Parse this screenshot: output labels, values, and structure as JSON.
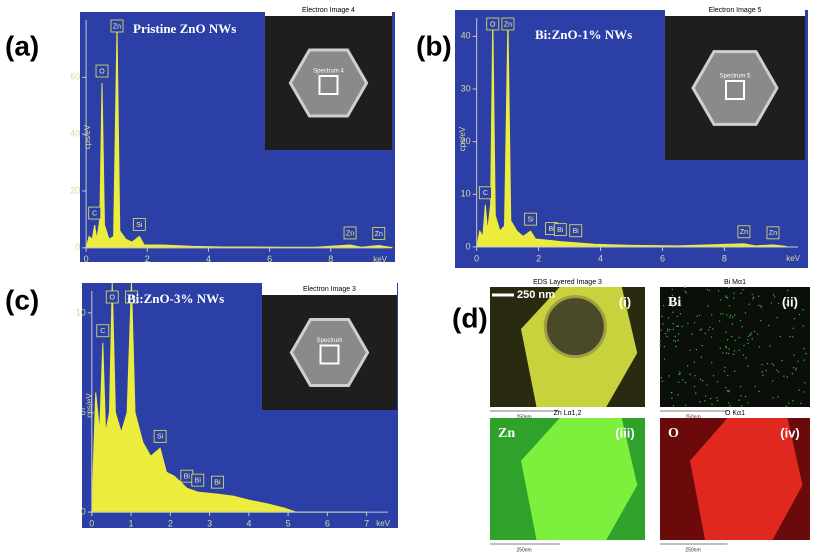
{
  "chart_data": [
    {
      "type": "area",
      "label": "(a)",
      "title": "Pristine ZnO NWs",
      "inset_title": "Electron Image 4",
      "inset_label": "Spectrum 4",
      "xlabel": "keV",
      "ylabel": "cps/eV",
      "color": "#ecec3c",
      "x": [
        0,
        0.1,
        0.2,
        0.28,
        0.35,
        0.45,
        0.52,
        0.6,
        0.75,
        0.9,
        1.01,
        1.1,
        1.3,
        1.5,
        1.74,
        1.9,
        2.5,
        3.5,
        4.5,
        5.5,
        6.5,
        7.5,
        8.63,
        9.0,
        9.57,
        10
      ],
      "values": [
        0,
        4,
        3,
        8,
        3,
        10,
        58,
        8,
        3,
        4,
        78,
        6,
        3,
        2,
        4,
        1,
        1,
        0.5,
        0.3,
        0.3,
        0.2,
        0.2,
        1,
        0.2,
        0.8,
        0.1
      ],
      "xlim": [
        -0.2,
        10.1
      ],
      "ylim": [
        -5,
        83
      ],
      "xticks": [
        0,
        2,
        4,
        6,
        8
      ],
      "yticks": [
        0,
        20,
        40,
        60
      ],
      "peaks": [
        {
          "text": "C",
          "x": 0.28
        },
        {
          "text": "O",
          "x": 0.52
        },
        {
          "text": "Zn",
          "x": 1.01
        },
        {
          "text": "Si",
          "x": 1.74
        },
        {
          "text": "Zn",
          "x": 8.63
        },
        {
          "text": "Zn",
          "x": 9.57
        }
      ]
    },
    {
      "type": "area",
      "label": "(b)",
      "title": "Bi:ZnO-1% NWs",
      "inset_title": "Electron Image 5",
      "inset_label": "Spectrum 5",
      "xlabel": "keV",
      "ylabel": "cps/eV",
      "color": "#ecec3c",
      "x": [
        0,
        0.1,
        0.2,
        0.28,
        0.35,
        0.45,
        0.52,
        0.6,
        0.75,
        0.9,
        1.01,
        1.1,
        1.3,
        1.5,
        1.74,
        1.9,
        2.42,
        2.7,
        3.2,
        3.8,
        5,
        6.5,
        8.63,
        9.0,
        9.57,
        10
      ],
      "values": [
        0,
        3,
        2,
        8,
        3,
        8,
        43,
        6,
        3,
        4,
        43,
        5,
        3,
        2,
        3,
        1.5,
        1.2,
        1,
        0.8,
        0.5,
        0.3,
        0.2,
        0.6,
        0.2,
        0.4,
        0.1
      ],
      "xlim": [
        -0.7,
        10.7
      ],
      "ylim": [
        -4,
        45
      ],
      "xticks": [
        0,
        2,
        4,
        6,
        8
      ],
      "yticks": [
        0,
        10,
        20,
        30,
        40
      ],
      "peaks": [
        {
          "text": "C",
          "x": 0.28
        },
        {
          "text": "O",
          "x": 0.52
        },
        {
          "text": "Zn",
          "x": 1.01
        },
        {
          "text": "Si",
          "x": 1.74
        },
        {
          "text": "Bi",
          "x": 2.42
        },
        {
          "text": "Bi",
          "x": 2.7
        },
        {
          "text": "Bi",
          "x": 3.2
        },
        {
          "text": "Zn",
          "x": 8.63
        },
        {
          "text": "Zn",
          "x": 9.57
        }
      ]
    },
    {
      "type": "area",
      "label": "(c)",
      "title": "Bi:ZnO-3% NWs",
      "inset_title": "Electron Image 3",
      "inset_label": "Spectrum",
      "xlabel": "keV",
      "ylabel": "cps/eV",
      "color": "#ecec3c",
      "x": [
        0,
        0.1,
        0.2,
        0.28,
        0.35,
        0.45,
        0.52,
        0.6,
        0.75,
        0.9,
        1.01,
        1.1,
        1.3,
        1.5,
        1.74,
        1.9,
        2.1,
        2.42,
        2.7,
        3.2,
        3.6,
        4,
        4.5,
        4.9,
        5.2,
        6,
        7
      ],
      "values": [
        0,
        6,
        4,
        8.5,
        4,
        5,
        11.5,
        5,
        4,
        5,
        11.5,
        5,
        3.5,
        2.8,
        3.2,
        2,
        1.8,
        1.2,
        1,
        0.9,
        0.8,
        0.6,
        0.4,
        0.2,
        0,
        0,
        0
      ],
      "xlim": [
        -0.25,
        7.8
      ],
      "ylim": [
        -0.8,
        11.5
      ],
      "xticks": [
        0,
        1,
        2,
        3,
        4,
        5,
        6,
        7
      ],
      "yticks": [
        0,
        5,
        10
      ],
      "peaks": [
        {
          "text": "C",
          "x": 0.28
        },
        {
          "text": "O",
          "x": 0.52
        },
        {
          "text": "Zn",
          "x": 1.01
        },
        {
          "text": "Si",
          "x": 1.74
        },
        {
          "text": "Bi",
          "x": 2.42
        },
        {
          "text": "Bi",
          "x": 2.7
        },
        {
          "text": "Bi",
          "x": 3.2
        }
      ]
    }
  ],
  "panel_d": {
    "label": "(d)",
    "scale_bar": "250 nm",
    "images": [
      {
        "header": "EDS Layered Image 3",
        "tag": "(i)",
        "scale": "250nm"
      },
      {
        "header": "Bi Mα1",
        "element": "Bi",
        "tag": "(ii)",
        "scale": "250nm"
      },
      {
        "header": "Zn Lα1,2",
        "element": "Zn",
        "tag": "(iii)",
        "scale": "250nm"
      },
      {
        "header": "O Kα1",
        "element": "O",
        "tag": "(iv)",
        "scale": "250nm"
      }
    ]
  }
}
